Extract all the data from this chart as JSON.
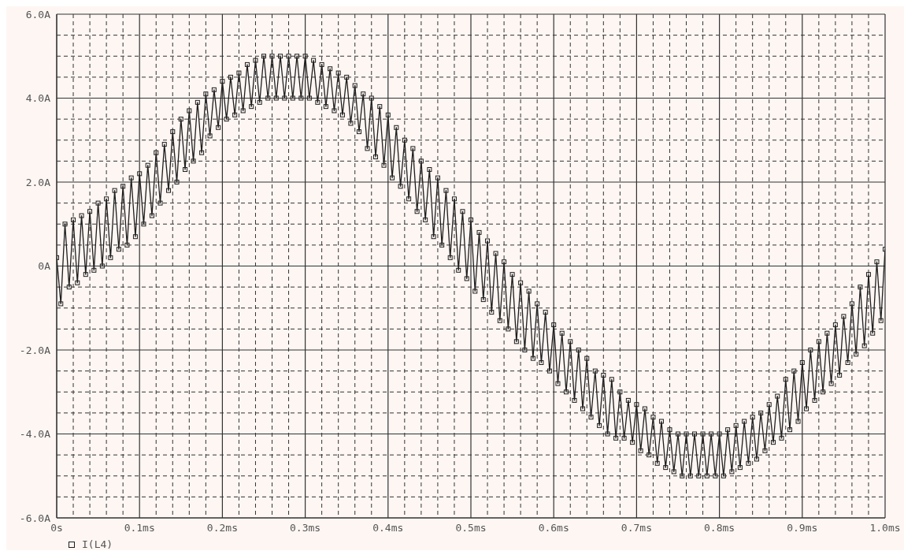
{
  "chart_data": {
    "type": "line",
    "x": [
      0,
      0.005,
      0.01,
      0.015,
      0.02,
      0.025,
      0.03,
      0.035,
      0.04,
      0.045,
      0.05,
      0.055,
      0.06,
      0.065,
      0.07,
      0.075,
      0.08,
      0.085,
      0.09,
      0.095,
      0.1,
      0.105,
      0.11,
      0.115,
      0.12,
      0.125,
      0.13,
      0.135,
      0.14,
      0.145,
      0.15,
      0.155,
      0.16,
      0.165,
      0.17,
      0.175,
      0.18,
      0.185,
      0.19,
      0.195,
      0.2,
      0.205,
      0.21,
      0.215,
      0.22,
      0.225,
      0.23,
      0.235,
      0.24,
      0.245,
      0.25,
      0.255,
      0.26,
      0.265,
      0.27,
      0.275,
      0.28,
      0.285,
      0.29,
      0.295,
      0.3,
      0.305,
      0.31,
      0.315,
      0.32,
      0.325,
      0.33,
      0.335,
      0.34,
      0.345,
      0.35,
      0.355,
      0.36,
      0.365,
      0.37,
      0.375,
      0.38,
      0.385,
      0.39,
      0.395,
      0.4,
      0.405,
      0.41,
      0.415,
      0.42,
      0.425,
      0.43,
      0.435,
      0.44,
      0.445,
      0.45,
      0.455,
      0.46,
      0.465,
      0.47,
      0.475,
      0.48,
      0.485,
      0.49,
      0.495,
      0.5,
      0.505,
      0.51,
      0.515,
      0.52,
      0.525,
      0.53,
      0.535,
      0.54,
      0.545,
      0.55,
      0.555,
      0.56,
      0.565,
      0.57,
      0.575,
      0.58,
      0.585,
      0.59,
      0.595,
      0.6,
      0.605,
      0.61,
      0.615,
      0.62,
      0.625,
      0.63,
      0.635,
      0.64,
      0.645,
      0.65,
      0.655,
      0.66,
      0.665,
      0.67,
      0.675,
      0.68,
      0.685,
      0.69,
      0.695,
      0.7,
      0.705,
      0.71,
      0.715,
      0.72,
      0.725,
      0.73,
      0.735,
      0.74,
      0.745,
      0.75,
      0.755,
      0.76,
      0.765,
      0.77,
      0.775,
      0.78,
      0.785,
      0.79,
      0.795,
      0.8,
      0.805,
      0.81,
      0.815,
      0.82,
      0.825,
      0.83,
      0.835,
      0.84,
      0.845,
      0.85,
      0.855,
      0.86,
      0.865,
      0.87,
      0.875,
      0.88,
      0.885,
      0.89,
      0.895,
      0.9,
      0.905,
      0.91,
      0.915,
      0.92,
      0.925,
      0.93,
      0.935,
      0.94,
      0.945,
      0.95,
      0.955,
      0.96,
      0.965,
      0.97,
      0.975,
      0.98,
      0.985,
      0.99,
      0.995,
      1.0
    ],
    "series": [
      {
        "name": "I(L4)",
        "color": "#1e1e1e",
        "values": [
          0.2,
          -0.9,
          1.0,
          -0.5,
          1.1,
          -0.4,
          1.2,
          -0.2,
          1.3,
          -0.1,
          1.5,
          0.0,
          1.6,
          0.2,
          1.8,
          0.4,
          1.9,
          0.5,
          2.1,
          0.7,
          2.2,
          1.0,
          2.4,
          1.2,
          2.7,
          1.5,
          2.9,
          1.8,
          3.2,
          2.0,
          3.5,
          2.3,
          3.7,
          2.5,
          3.9,
          2.7,
          4.1,
          3.1,
          4.2,
          3.3,
          4.4,
          3.5,
          4.5,
          3.6,
          4.6,
          3.7,
          4.8,
          3.8,
          4.9,
          3.9,
          5.0,
          4.0,
          5.0,
          4.0,
          5.0,
          4.0,
          5.0,
          4.0,
          5.0,
          4.0,
          5.0,
          4.0,
          4.9,
          3.9,
          4.8,
          3.8,
          4.7,
          3.7,
          4.6,
          3.6,
          4.5,
          3.4,
          4.3,
          3.2,
          4.1,
          2.8,
          4.0,
          2.6,
          3.8,
          2.4,
          3.6,
          2.1,
          3.3,
          1.9,
          3.0,
          1.6,
          2.8,
          1.3,
          2.5,
          1.1,
          2.3,
          0.7,
          2.1,
          0.5,
          1.8,
          0.2,
          1.6,
          -0.1,
          1.3,
          -0.3,
          1.1,
          -0.6,
          0.8,
          -0.8,
          0.6,
          -1.1,
          0.3,
          -1.3,
          0.1,
          -1.5,
          -0.2,
          -1.8,
          -0.4,
          -2.0,
          -0.6,
          -2.2,
          -0.9,
          -2.3,
          -1.1,
          -2.5,
          -1.4,
          -2.8,
          -1.6,
          -3.0,
          -1.8,
          -3.2,
          -2.0,
          -3.4,
          -2.2,
          -3.6,
          -2.5,
          -3.8,
          -2.6,
          -4.0,
          -2.7,
          -4.1,
          -3.0,
          -4.1,
          -3.2,
          -4.2,
          -3.3,
          -4.4,
          -3.4,
          -4.5,
          -3.6,
          -4.7,
          -3.7,
          -4.8,
          -3.9,
          -4.9,
          -4.0,
          -5.0,
          -4.0,
          -5.0,
          -4.0,
          -5.0,
          -4.0,
          -5.0,
          -4.0,
          -5.0,
          -4.0,
          -5.0,
          -3.9,
          -4.9,
          -3.8,
          -4.8,
          -3.7,
          -4.7,
          -3.6,
          -4.6,
          -3.5,
          -4.4,
          -3.3,
          -4.2,
          -3.1,
          -4.1,
          -2.7,
          -3.9,
          -2.5,
          -3.7,
          -2.3,
          -3.4,
          -2.0,
          -3.2,
          -1.8,
          -3.0,
          -1.6,
          -2.8,
          -1.4,
          -2.6,
          -1.2,
          -2.3,
          -0.9,
          -2.1,
          -0.5,
          -1.9,
          -0.2,
          -1.6,
          0.1,
          -1.3,
          0.4
        ]
      }
    ],
    "xlim": [
      0,
      1.0
    ],
    "xticks": [
      {
        "value": 0,
        "label": "0s"
      },
      {
        "value": 0.02,
        "label": null
      },
      {
        "value": 0.04,
        "label": null
      },
      {
        "value": 0.06,
        "label": null
      },
      {
        "value": 0.08,
        "label": null
      },
      {
        "value": 0.1,
        "label": "0.1ms"
      },
      {
        "value": 0.12,
        "label": null
      },
      {
        "value": 0.14,
        "label": null
      },
      {
        "value": 0.16,
        "label": null
      },
      {
        "value": 0.18,
        "label": null
      },
      {
        "value": 0.2,
        "label": "0.2ms"
      },
      {
        "value": 0.22,
        "label": null
      },
      {
        "value": 0.24,
        "label": null
      },
      {
        "value": 0.26,
        "label": null
      },
      {
        "value": 0.28,
        "label": null
      },
      {
        "value": 0.3,
        "label": "0.3ms"
      },
      {
        "value": 0.32,
        "label": null
      },
      {
        "value": 0.34,
        "label": null
      },
      {
        "value": 0.36,
        "label": null
      },
      {
        "value": 0.38,
        "label": null
      },
      {
        "value": 0.4,
        "label": "0.4ms"
      },
      {
        "value": 0.42,
        "label": null
      },
      {
        "value": 0.44,
        "label": null
      },
      {
        "value": 0.46,
        "label": null
      },
      {
        "value": 0.48,
        "label": null
      },
      {
        "value": 0.5,
        "label": "0.5ms"
      },
      {
        "value": 0.52,
        "label": null
      },
      {
        "value": 0.54,
        "label": null
      },
      {
        "value": 0.56,
        "label": null
      },
      {
        "value": 0.58,
        "label": null
      },
      {
        "value": 0.6,
        "label": "0.6ms"
      },
      {
        "value": 0.62,
        "label": null
      },
      {
        "value": 0.64,
        "label": null
      },
      {
        "value": 0.66,
        "label": null
      },
      {
        "value": 0.68,
        "label": null
      },
      {
        "value": 0.7,
        "label": "0.7ms"
      },
      {
        "value": 0.72,
        "label": null
      },
      {
        "value": 0.74,
        "label": null
      },
      {
        "value": 0.76,
        "label": null
      },
      {
        "value": 0.78,
        "label": null
      },
      {
        "value": 0.8,
        "label": "0.8ms"
      },
      {
        "value": 0.82,
        "label": null
      },
      {
        "value": 0.84,
        "label": null
      },
      {
        "value": 0.86,
        "label": null
      },
      {
        "value": 0.88,
        "label": null
      },
      {
        "value": 0.9,
        "label": "0.9ms"
      },
      {
        "value": 0.92,
        "label": null
      },
      {
        "value": 0.94,
        "label": null
      },
      {
        "value": 0.96,
        "label": null
      },
      {
        "value": 0.98,
        "label": null
      },
      {
        "value": 1.0,
        "label": "1.0ms"
      }
    ],
    "ylim": [
      -6,
      6
    ],
    "yticks": [
      {
        "value": -6,
        "label": "-6.0A"
      },
      {
        "value": -5.5,
        "label": null
      },
      {
        "value": -5,
        "label": null
      },
      {
        "value": -4.5,
        "label": null
      },
      {
        "value": -4,
        "label": "-4.0A"
      },
      {
        "value": -3.5,
        "label": null
      },
      {
        "value": -3,
        "label": null
      },
      {
        "value": -2.5,
        "label": null
      },
      {
        "value": -2,
        "label": "-2.0A"
      },
      {
        "value": -1.5,
        "label": null
      },
      {
        "value": -1,
        "label": null
      },
      {
        "value": -0.5,
        "label": null
      },
      {
        "value": 0,
        "label": "0A"
      },
      {
        "value": 0.5,
        "label": null
      },
      {
        "value": 1,
        "label": null
      },
      {
        "value": 1.5,
        "label": null
      },
      {
        "value": 2,
        "label": "2.0A"
      },
      {
        "value": 2.5,
        "label": null
      },
      {
        "value": 3,
        "label": null
      },
      {
        "value": 3.5,
        "label": null
      },
      {
        "value": 4,
        "label": "4.0A"
      },
      {
        "value": 4.5,
        "label": null
      },
      {
        "value": 5,
        "label": null
      },
      {
        "value": 5.5,
        "label": null
      },
      {
        "value": 6,
        "label": "6.0A"
      }
    ],
    "grid": true,
    "legend": "bottom left",
    "marker": "square",
    "line_style": "solid"
  }
}
